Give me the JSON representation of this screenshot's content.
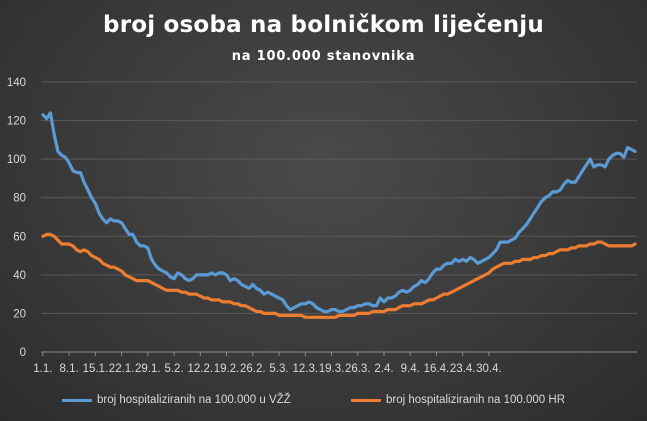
{
  "chart_data": {
    "type": "line",
    "title": "broj osoba na bolničkom liječenju",
    "subtitle": "na 100.000 stanovnika",
    "ylim": [
      0,
      140
    ],
    "y_ticks": [
      0,
      20,
      40,
      60,
      80,
      100,
      120,
      140
    ],
    "x_tick_labels": [
      "1.1.",
      "8.1.",
      "15.1.",
      "22.1.",
      "29.1.",
      "5.2.",
      "12.2.",
      "19.2.",
      "26.2.",
      "5.3.",
      "12.3.",
      "19.3.",
      "26.3.",
      "2.4.",
      "9.4.",
      "16.4.",
      "23.4.",
      "30.4."
    ],
    "grid": "horizontal",
    "legend_position": "bottom",
    "series": [
      {
        "name": "broj hospitaliziranih na 100.000 u VŽŽ",
        "color": "#5b9bd5",
        "values": [
          123,
          121,
          124,
          113,
          104,
          102,
          101,
          98,
          94,
          93,
          93,
          88,
          84,
          80,
          77,
          72,
          69,
          67,
          69,
          68,
          68,
          67,
          64,
          61,
          61,
          57,
          55,
          55,
          54,
          48,
          45,
          43,
          42,
          41,
          39,
          38,
          41,
          40,
          38,
          37,
          38,
          40,
          40,
          40,
          40,
          41,
          40,
          41,
          41,
          40,
          37,
          38,
          37,
          35,
          34,
          33,
          35,
          33,
          32,
          30,
          31,
          30,
          29,
          28,
          27,
          24,
          22,
          23,
          24,
          25,
          25,
          26,
          25,
          23,
          22,
          21,
          21,
          22,
          22,
          21,
          21,
          22,
          23,
          23,
          24,
          24,
          25,
          25,
          24,
          24,
          28,
          26,
          28,
          28,
          29,
          31,
          32,
          31,
          32,
          34,
          35,
          37,
          36,
          38,
          41,
          43,
          43,
          45,
          46,
          46,
          48,
          47,
          48,
          47,
          49,
          48,
          46,
          47,
          48,
          49,
          51,
          53,
          57,
          57,
          57,
          58,
          59,
          62,
          64,
          66,
          69,
          72,
          75,
          78,
          80,
          81,
          83,
          83,
          84,
          87,
          89,
          88,
          88,
          91,
          94,
          97,
          100,
          96,
          97,
          97,
          96,
          100,
          102,
          103,
          103,
          101,
          106,
          105,
          104
        ]
      },
      {
        "name": "broj hospitaliziranih na 100.000 HR",
        "color": "#ed7d31",
        "values": [
          60,
          61,
          61,
          60,
          58,
          56,
          56,
          56,
          55,
          53,
          52,
          53,
          52,
          50,
          49,
          48,
          46,
          45,
          44,
          44,
          43,
          42,
          40,
          39,
          38,
          37,
          37,
          37,
          37,
          36,
          35,
          34,
          33,
          32,
          32,
          32,
          32,
          31,
          31,
          30,
          30,
          30,
          29,
          28,
          28,
          27,
          27,
          27,
          26,
          26,
          26,
          25,
          25,
          24,
          24,
          23,
          22,
          21,
          21,
          20,
          20,
          20,
          20,
          19,
          19,
          19,
          19,
          19,
          19,
          19,
          18,
          18,
          18,
          18,
          18,
          18,
          18,
          18,
          18,
          19,
          19,
          19,
          19,
          19,
          20,
          20,
          20,
          20,
          21,
          21,
          21,
          21,
          22,
          22,
          22,
          23,
          24,
          24,
          24,
          25,
          25,
          25,
          26,
          27,
          27,
          28,
          29,
          30,
          30,
          31,
          32,
          33,
          34,
          35,
          36,
          37,
          38,
          39,
          40,
          41,
          43,
          44,
          45,
          46,
          46,
          46,
          47,
          47,
          48,
          48,
          48,
          49,
          49,
          50,
          50,
          51,
          51,
          52,
          53,
          53,
          53,
          54,
          54,
          55,
          55,
          55,
          56,
          56,
          57,
          57,
          56,
          55,
          55,
          55,
          55,
          55,
          55,
          55,
          56
        ]
      }
    ]
  }
}
